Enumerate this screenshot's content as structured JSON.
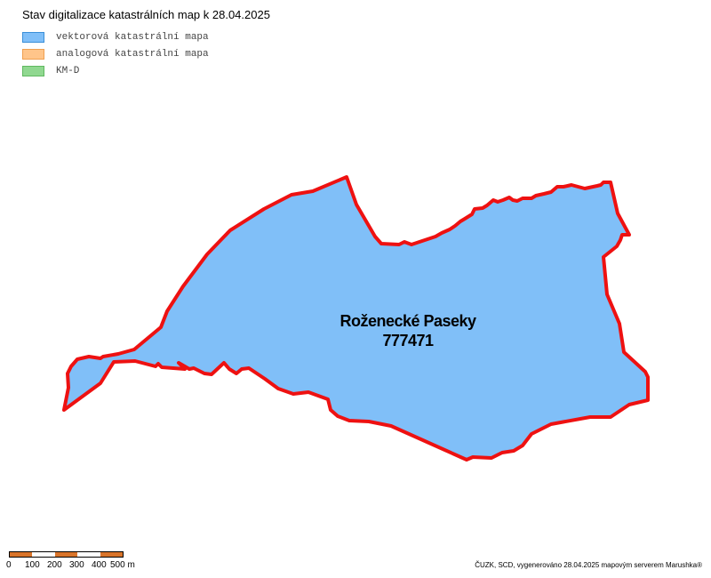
{
  "title": "Stav digitalizace katastrálních map k 28.04.2025",
  "legend": [
    {
      "label": "vektorová katastrální mapa",
      "fill": "#80bff8",
      "stroke": "#3a8fd8"
    },
    {
      "label": "analogová katastrální mapa",
      "fill": "#ffc58a",
      "stroke": "#f0a050"
    },
    {
      "label": "KM-D",
      "fill": "#90d890",
      "stroke": "#60b860"
    }
  ],
  "parcel": {
    "name": "Roženecké Paseky",
    "code": "777471",
    "fill": "#80bff8",
    "stroke": "#ee1111"
  },
  "scale": {
    "labels": [
      "0",
      "100",
      "200",
      "300",
      "400",
      "500 m"
    ],
    "dark_color": "#d9742a"
  },
  "credit": "ČUZK, SCD, vygenerováno 28.04.2025 mapovým serverem Marushka®"
}
